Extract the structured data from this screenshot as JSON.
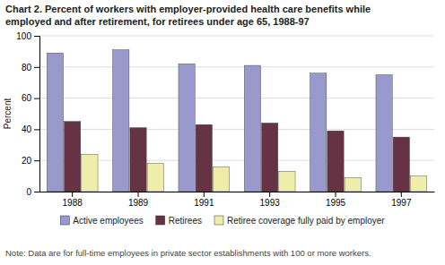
{
  "chart_data": {
    "type": "bar",
    "title": "Chart 2.  Percent of workers with employer-provided health care benefits while",
    "subtitle": "employed and after retirement, for retirees under age 65, 1988-97",
    "annotations": [
      "Note: Data are for full-time employees in private sector establishments with 100 or more workers."
    ],
    "y_label": "Percent",
    "categories": [
      "1988",
      "1989",
      "1991",
      "1993",
      "1995",
      "1997"
    ],
    "series": [
      {
        "name": "Active employees",
        "color": "#9999cc",
        "values": [
          89,
          91,
          82,
          81,
          76,
          75
        ]
      },
      {
        "name": "Retirees",
        "color": "#663344",
        "values": [
          45,
          41,
          43,
          44,
          39,
          35
        ]
      },
      {
        "name": "Retiree coverage fully paid by employer",
        "color": "#eeeeaa",
        "values": [
          24,
          18,
          16,
          13,
          9,
          10
        ]
      }
    ],
    "ylim": [
      0,
      100
    ],
    "yticks": [
      0,
      20,
      40,
      60,
      80,
      100
    ],
    "grid": true,
    "legend": "bottom"
  }
}
